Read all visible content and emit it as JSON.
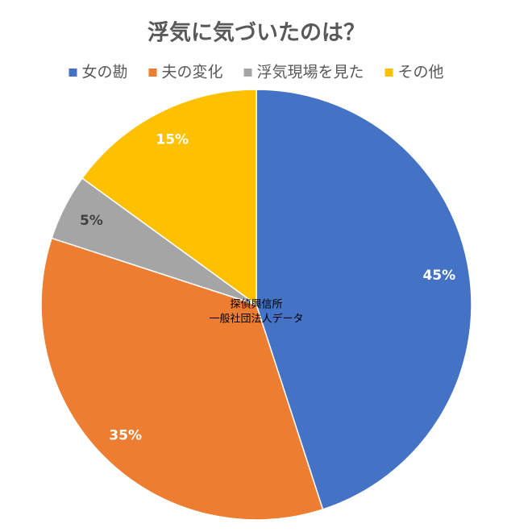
{
  "chart_data": {
    "type": "pie",
    "title": "浮気に気づいたのは？",
    "categories": [
      "女の勘",
      "夫の変化",
      "浮気現場を見た",
      "その他"
    ],
    "values": [
      45,
      35,
      5,
      15
    ],
    "value_labels": [
      "45%",
      "35%",
      "5%",
      "15%"
    ],
    "colors": [
      "#4472c4",
      "#ed7d31",
      "#a5a5a5",
      "#ffc000"
    ],
    "value_label_colors": [
      "#ffffff",
      "#ffffff",
      "#404040",
      "#ffffff"
    ],
    "annotation": [
      "探偵興信所",
      "一般社団法人データ"
    ],
    "legend": "top"
  }
}
